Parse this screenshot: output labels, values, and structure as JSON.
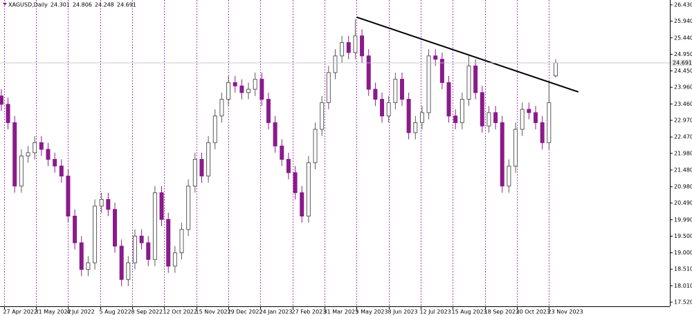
{
  "chart_data": {
    "type": "candlestick",
    "title": "XAGUSD,Daily",
    "header_values": [
      24.301,
      24.806,
      24.248,
      24.691
    ],
    "up_color": "#5a5a5a",
    "down_color": "#8b1a8b",
    "grid_color": "#b000b0",
    "x": [
      0,
      5,
      10,
      15,
      20,
      25,
      30,
      35,
      40,
      45,
      50,
      55,
      60,
      65,
      70,
      75,
      80,
      85,
      90,
      95,
      100,
      105,
      110,
      115,
      120,
      125,
      130,
      135,
      140,
      145,
      150,
      155,
      160,
      165,
      170,
      175,
      180,
      185,
      190,
      195,
      200,
      205,
      210,
      215,
      220,
      225,
      230,
      235,
      240,
      245,
      250,
      255,
      260,
      265,
      270,
      275,
      280,
      285,
      290,
      295,
      300,
      305,
      310,
      315,
      320,
      325,
      330,
      335,
      340,
      345,
      350,
      355,
      360,
      365,
      370,
      375,
      380,
      385,
      390,
      395,
      400,
      405,
      410,
      415
    ],
    "open": [
      23.7,
      23.45,
      22.9,
      21.0,
      21.9,
      22.0,
      22.3,
      22.1,
      21.8,
      21.6,
      21.3,
      20.1,
      19.3,
      18.5,
      18.7,
      20.4,
      20.6,
      20.3,
      19.2,
      18.2,
      18.7,
      19.5,
      19.3,
      18.8,
      20.8,
      20.0,
      18.6,
      19.0,
      19.7,
      21.0,
      21.8,
      21.3,
      22.3,
      23.1,
      23.6,
      24.1,
      24.0,
      23.8,
      23.9,
      24.2,
      23.6,
      22.9,
      22.2,
      21.8,
      21.4,
      20.8,
      20.1,
      21.7,
      22.7,
      23.5,
      24.4,
      24.9,
      25.3,
      25.0,
      25.5,
      24.9,
      23.9,
      23.6,
      23.1,
      23.5,
      24.2,
      23.6,
      22.6,
      22.9,
      23.2,
      24.9,
      24.8,
      24.1,
      23.1,
      22.9,
      23.6,
      24.6,
      23.8,
      22.8,
      23.2,
      22.9,
      21.0,
      21.6,
      22.7,
      23.3,
      23.2,
      22.9,
      22.3,
      24.301
    ],
    "high": [
      23.9,
      23.65,
      23.1,
      22.1,
      22.2,
      22.5,
      22.5,
      22.3,
      22.0,
      21.8,
      21.5,
      20.3,
      19.5,
      18.9,
      20.6,
      20.8,
      20.8,
      20.5,
      19.4,
      18.9,
      19.7,
      19.7,
      19.5,
      21.0,
      21.0,
      20.2,
      19.2,
      19.9,
      21.2,
      22.0,
      22.0,
      22.5,
      23.3,
      23.8,
      24.3,
      24.3,
      24.2,
      24.1,
      24.4,
      24.4,
      23.8,
      23.1,
      22.4,
      22.0,
      21.6,
      21.0,
      21.9,
      22.9,
      23.7,
      24.6,
      25.1,
      25.5,
      25.5,
      26.0,
      25.7,
      25.1,
      24.1,
      23.8,
      23.7,
      24.4,
      24.4,
      23.8,
      23.1,
      23.4,
      25.1,
      25.1,
      25.0,
      24.3,
      23.3,
      23.8,
      24.9,
      24.8,
      24.0,
      23.4,
      23.4,
      23.1,
      21.8,
      22.9,
      23.5,
      23.5,
      23.4,
      23.1,
      24.1,
      24.806
    ],
    "low": [
      23.25,
      22.7,
      20.8,
      20.8,
      21.7,
      21.8,
      21.9,
      21.6,
      21.4,
      21.1,
      19.9,
      19.1,
      18.3,
      18.3,
      18.5,
      20.2,
      20.1,
      19.0,
      18.0,
      18.0,
      18.5,
      19.1,
      18.6,
      18.6,
      19.8,
      18.4,
      18.4,
      18.8,
      19.5,
      20.8,
      21.1,
      21.1,
      22.1,
      22.9,
      23.4,
      23.8,
      23.6,
      23.6,
      23.7,
      23.4,
      22.7,
      22.0,
      21.6,
      21.2,
      20.6,
      19.9,
      19.9,
      21.5,
      22.5,
      23.3,
      24.2,
      24.7,
      24.8,
      24.8,
      24.7,
      23.7,
      23.4,
      22.9,
      22.9,
      23.3,
      23.4,
      22.4,
      22.4,
      22.7,
      23.0,
      24.6,
      23.9,
      22.9,
      22.7,
      22.7,
      23.4,
      23.6,
      22.6,
      22.6,
      22.7,
      20.8,
      20.8,
      21.4,
      22.5,
      23.0,
      22.7,
      22.1,
      22.1,
      24.248
    ],
    "close": [
      23.45,
      22.9,
      21.0,
      21.9,
      22.0,
      22.3,
      22.1,
      21.8,
      21.6,
      21.3,
      20.1,
      19.3,
      18.5,
      18.7,
      20.4,
      20.6,
      20.3,
      19.2,
      18.2,
      18.7,
      19.5,
      19.3,
      18.8,
      20.8,
      20.0,
      18.6,
      19.0,
      19.7,
      21.0,
      21.8,
      21.3,
      22.3,
      23.1,
      23.6,
      24.1,
      24.0,
      23.8,
      23.9,
      24.2,
      23.6,
      22.9,
      22.2,
      21.8,
      21.4,
      20.8,
      20.1,
      21.7,
      22.7,
      23.5,
      24.4,
      24.9,
      25.3,
      25.0,
      25.5,
      24.9,
      23.9,
      23.6,
      23.1,
      23.5,
      24.2,
      23.6,
      22.6,
      22.9,
      23.2,
      24.9,
      24.8,
      24.1,
      23.1,
      22.9,
      23.6,
      24.6,
      23.8,
      22.8,
      23.2,
      22.9,
      21.0,
      21.6,
      22.7,
      23.3,
      23.2,
      22.9,
      22.3,
      23.5,
      24.691
    ],
    "xlim": [
      -1,
      500.5
    ],
    "xticks": [
      {
        "value": 2,
        "label": "27 Apr 2022"
      },
      {
        "value": 26,
        "label": "31 May 2022"
      },
      {
        "value": 50,
        "label": "4 Jul 2022"
      },
      {
        "value": 74,
        "label": "5 Aug 2022"
      },
      {
        "value": 98,
        "label": "8 Sep 2022"
      },
      {
        "value": 122,
        "label": "12 Oct 2022"
      },
      {
        "value": 146,
        "label": "15 Nov 2022"
      },
      {
        "value": 170,
        "label": "19 Dec 2022"
      },
      {
        "value": 194,
        "label": "24 Jan 2023"
      },
      {
        "value": 218,
        "label": "27 Feb 2023"
      },
      {
        "value": 242,
        "label": "31 Mar 2023"
      },
      {
        "value": 266,
        "label": "5 May 2023"
      },
      {
        "value": 290,
        "label": "8 Jun 2023"
      },
      {
        "value": 314,
        "label": "12 Jul 2023"
      },
      {
        "value": 338,
        "label": "15 Aug 2023"
      },
      {
        "value": 362,
        "label": "18 Sep 2023"
      },
      {
        "value": 386,
        "label": "20 Oct 2023"
      },
      {
        "value": 410,
        "label": "23 Nov 2023"
      }
    ],
    "ylim": [
      17.396,
      26.575
    ],
    "yticks": [
      {
        "value": 26.43,
        "label": "26.430"
      },
      {
        "value": 25.94,
        "label": "25.940"
      },
      {
        "value": 25.44,
        "label": "25.440"
      },
      {
        "value": 24.95,
        "label": "24.950"
      },
      {
        "value": 24.45,
        "label": "24.450"
      },
      {
        "value": 23.96,
        "label": "23.960"
      },
      {
        "value": 23.46,
        "label": "23.460"
      },
      {
        "value": 22.97,
        "label": "22.970"
      },
      {
        "value": 22.47,
        "label": "22.470"
      },
      {
        "value": 21.98,
        "label": "21.980"
      },
      {
        "value": 21.48,
        "label": "21.480"
      },
      {
        "value": 20.98,
        "label": "20.980"
      },
      {
        "value": 20.49,
        "label": "20.490"
      },
      {
        "value": 19.99,
        "label": "19.990"
      },
      {
        "value": 19.5,
        "label": "19.500"
      },
      {
        "value": 19,
        "label": "19.000"
      },
      {
        "value": 18.51,
        "label": "18.510"
      },
      {
        "value": 18.01,
        "label": "18.010"
      },
      {
        "value": 17.52,
        "label": "17.520"
      }
    ],
    "last_price": {
      "value": 24.691,
      "label": "24.691"
    },
    "trendline": {
      "x": [
        266,
        432
      ],
      "y": [
        26.06,
        23.82
      ],
      "color": "#000000"
    }
  }
}
